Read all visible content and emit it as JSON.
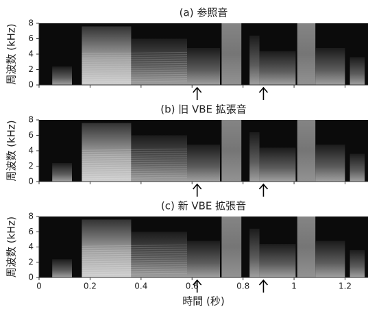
{
  "chart_data": [
    {
      "type": "spectrogram",
      "title": "(a) 参照音",
      "ylabel": "周波数 (kHz)",
      "xlim": [
        0,
        1.29
      ],
      "xticks": [
        0,
        0.2,
        0.4,
        0.6,
        0.8,
        1,
        1.2
      ],
      "ylim": [
        0,
        8
      ],
      "yticks": [
        0,
        2,
        4,
        6,
        8
      ],
      "arrow_x": [
        0.62,
        0.88
      ]
    },
    {
      "type": "spectrogram",
      "title": "(b) 旧 VBE 拡張音",
      "ylabel": "周波数 (kHz)",
      "xlim": [
        0,
        1.29
      ],
      "xticks": [
        0,
        0.2,
        0.4,
        0.6,
        0.8,
        1,
        1.2
      ],
      "ylim": [
        0,
        8
      ],
      "yticks": [
        0,
        2,
        4,
        6,
        8
      ],
      "arrow_x": [
        0.62,
        0.88
      ]
    },
    {
      "type": "spectrogram",
      "title": "(c) 新 VBE 拡張音",
      "ylabel": "周波数 (kHz)",
      "xlabel": "時間 (秒)",
      "xlim": [
        0,
        1.29
      ],
      "xticks": [
        0,
        0.2,
        0.4,
        0.6,
        0.8,
        1,
        1.2
      ],
      "ylim": [
        0,
        8
      ],
      "yticks": [
        0,
        2,
        4,
        6,
        8
      ],
      "arrow_x": [
        0.62,
        0.88
      ]
    }
  ]
}
